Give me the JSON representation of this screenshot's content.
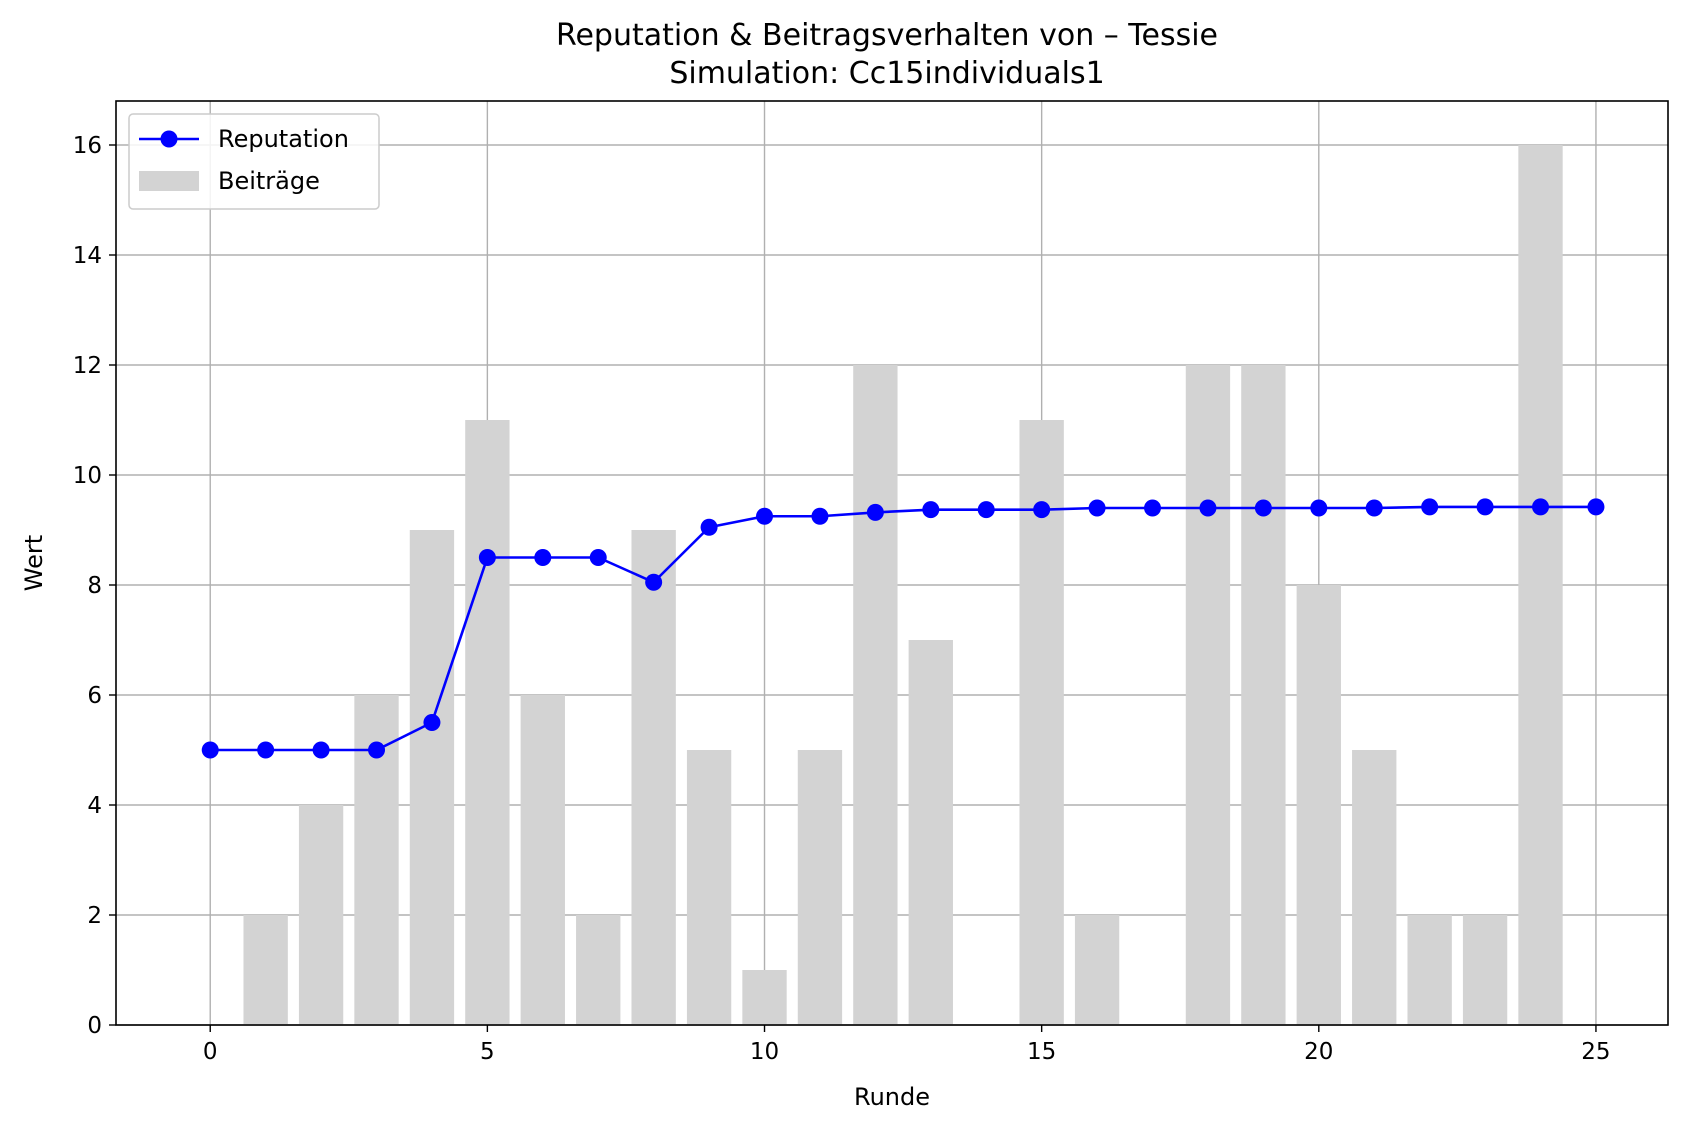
{
  "chart_data": {
    "type": "bar",
    "title": "Reputation & Beitragsverhalten von – Tessie",
    "subtitle": "Simulation: Cc15individuals1",
    "xlabel": "Runde",
    "ylabel": "Wert",
    "xlim": [
      -1.7,
      26.3
    ],
    "ylim": [
      0,
      16.8
    ],
    "x_ticks": [
      0,
      5,
      10,
      15,
      20,
      25
    ],
    "y_ticks": [
      0,
      2,
      4,
      6,
      8,
      10,
      12,
      14,
      16
    ],
    "grid": true,
    "legend_position": "top-left",
    "x": [
      0,
      1,
      2,
      3,
      4,
      5,
      6,
      7,
      8,
      9,
      10,
      11,
      12,
      13,
      14,
      15,
      16,
      17,
      18,
      19,
      20,
      21,
      22,
      23,
      24,
      25
    ],
    "series": [
      {
        "name": "Reputation",
        "kind": "line",
        "marker": "circle",
        "color": "#0000ff",
        "values": [
          5.0,
          5.0,
          5.0,
          5.0,
          5.5,
          8.5,
          8.5,
          8.5,
          8.05,
          9.05,
          9.25,
          9.25,
          9.32,
          9.37,
          9.37,
          9.37,
          9.4,
          9.4,
          9.4,
          9.4,
          9.4,
          9.4,
          9.42,
          9.42,
          9.42,
          9.42
        ]
      },
      {
        "name": "Beiträge",
        "kind": "bar",
        "color": "#d3d3d3",
        "x": [
          1,
          2,
          3,
          4,
          5,
          6,
          7,
          8,
          9,
          10,
          11,
          12,
          13,
          15,
          16,
          18,
          19,
          20,
          21,
          22,
          23,
          24
        ],
        "values": [
          2,
          4,
          6,
          9,
          11,
          6,
          2,
          9,
          5,
          1,
          5,
          12,
          7,
          11,
          2,
          12,
          12,
          8,
          5,
          2,
          2,
          16
        ]
      }
    ]
  }
}
